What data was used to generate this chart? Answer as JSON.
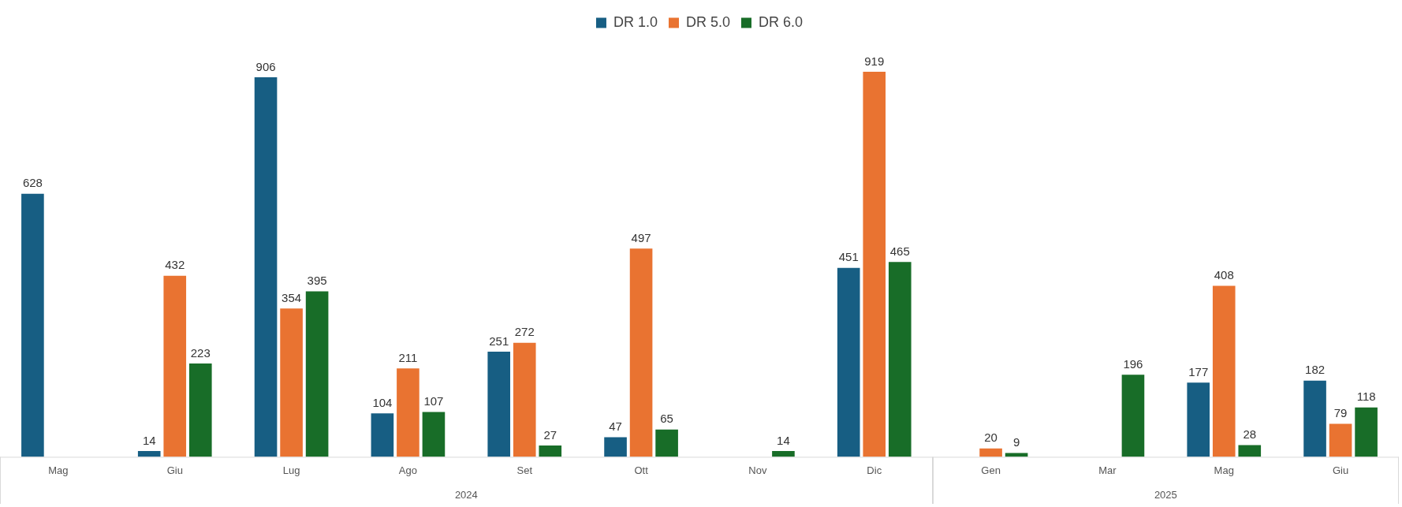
{
  "chart_data": {
    "type": "bar",
    "categories": [
      "Mag",
      "Giu",
      "Lug",
      "Ago",
      "Set",
      "Ott",
      "Nov",
      "Dic",
      "Gen",
      "Mar",
      "Mag",
      "Giu"
    ],
    "series": [
      {
        "name": "DR 1.0",
        "color": "#175e83",
        "values": [
          628,
          14,
          906,
          104,
          251,
          47,
          null,
          451,
          null,
          null,
          177,
          182
        ]
      },
      {
        "name": "DR 5.0",
        "color": "#e97331",
        "values": [
          null,
          432,
          354,
          211,
          272,
          497,
          null,
          919,
          20,
          null,
          408,
          79
        ]
      },
      {
        "name": "DR 6.0",
        "color": "#186d28",
        "values": [
          null,
          223,
          395,
          107,
          27,
          65,
          14,
          465,
          9,
          196,
          28,
          118
        ]
      }
    ],
    "annotations": [
      "2024",
      "2025"
    ],
    "data_labels": true,
    "legend": "top",
    "grid": false
  }
}
